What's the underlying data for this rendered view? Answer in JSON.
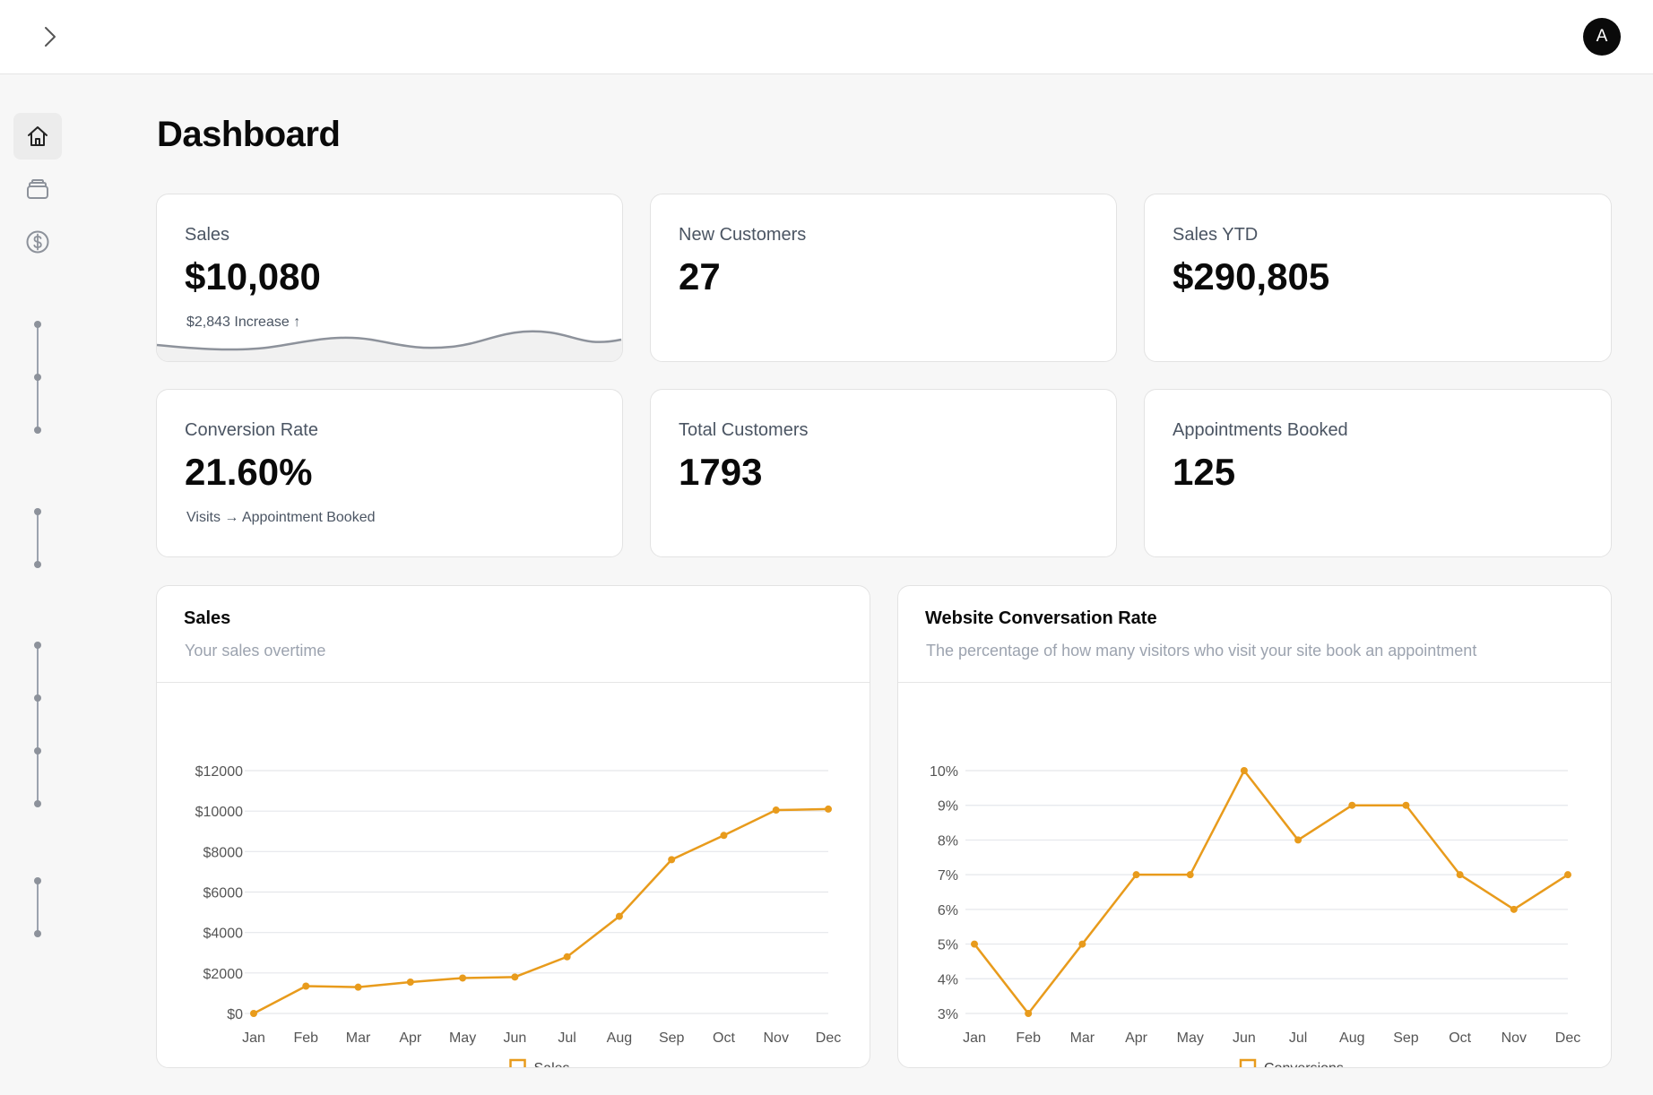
{
  "header": {
    "avatar_initial": "A"
  },
  "sidebar": {
    "items": [
      {
        "name": "home",
        "icon": "home-icon",
        "active": true
      },
      {
        "name": "inventory",
        "icon": "layers-icon",
        "active": false
      },
      {
        "name": "billing",
        "icon": "dollar-circle-icon",
        "active": false
      }
    ]
  },
  "page": {
    "title": "Dashboard"
  },
  "stats": [
    {
      "label": "Sales",
      "value": "$10,080",
      "sub": "$2,843 Increase ↑"
    },
    {
      "label": "New Customers",
      "value": "27",
      "sub": ""
    },
    {
      "label": "Sales YTD",
      "value": "$290,805",
      "sub": ""
    },
    {
      "label": "Conversion Rate",
      "value": "21.60%",
      "sub": "Visits → Appointment Booked"
    },
    {
      "label": "Total Customers",
      "value": "1793",
      "sub": ""
    },
    {
      "label": "Appointments Booked",
      "value": "125",
      "sub": ""
    }
  ],
  "sales_chart": {
    "title": "Sales",
    "description": "Your sales overtime"
  },
  "conversion_chart": {
    "title": "Website Conversation Rate",
    "description": "The percentage of how many visitors who visit your site book an appointment"
  },
  "colors": {
    "accent": "#e89b1c",
    "grid": "#e5e7eb",
    "sparkline": "#8d929b"
  },
  "chart_data": [
    {
      "type": "line",
      "title": "Sales",
      "categories": [
        "Jan",
        "Feb",
        "Mar",
        "Apr",
        "May",
        "Jun",
        "Jul",
        "Aug",
        "Sep",
        "Oct",
        "Nov",
        "Dec"
      ],
      "series": [
        {
          "name": "Sales",
          "values": [
            0,
            1350,
            1300,
            1550,
            1750,
            1800,
            2800,
            4800,
            7600,
            8800,
            10050,
            10100
          ]
        }
      ],
      "ylim": [
        0,
        12000
      ],
      "yticks": [
        0,
        2000,
        4000,
        6000,
        8000,
        10000,
        12000
      ],
      "ytick_labels": [
        "$0",
        "$2000",
        "$4000",
        "$6000",
        "$8000",
        "$10000",
        "$12000"
      ],
      "grid": true,
      "legend": "bottom"
    },
    {
      "type": "line",
      "title": "Website Conversation Rate",
      "categories": [
        "Jan",
        "Feb",
        "Mar",
        "Apr",
        "May",
        "Jun",
        "Jul",
        "Aug",
        "Sep",
        "Oct",
        "Nov",
        "Dec"
      ],
      "series": [
        {
          "name": "Conversions",
          "values": [
            5,
            3,
            5,
            7,
            7,
            10,
            8,
            9,
            9,
            7,
            6,
            7
          ]
        }
      ],
      "ylim": [
        3,
        10
      ],
      "yticks": [
        3,
        4,
        5,
        6,
        7,
        8,
        9,
        10
      ],
      "ytick_labels": [
        "3%",
        "4%",
        "5%",
        "6%",
        "7%",
        "8%",
        "9%",
        "10%"
      ],
      "grid": true,
      "legend": "bottom"
    }
  ]
}
